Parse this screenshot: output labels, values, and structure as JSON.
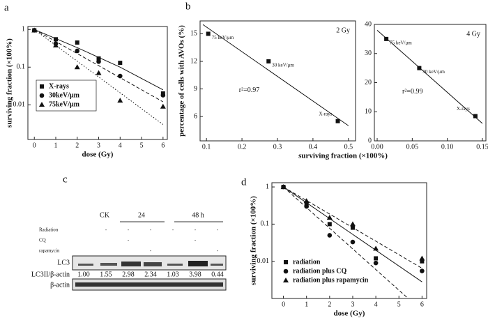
{
  "panels": [
    "a",
    "b",
    "c",
    "d"
  ],
  "chart_data": [
    {
      "type": "scatter",
      "log_y": true,
      "x_label": "dose  (Gy)",
      "y_label": "surviving fraction  (×100%)",
      "xlim": [
        -0.3,
        6.2
      ],
      "xticks": [
        0,
        1,
        2,
        3,
        4,
        5,
        6
      ],
      "ylim": [
        0.0012,
        1.2
      ],
      "yticks": [
        1,
        0.1,
        0.01
      ],
      "legend": "lower left",
      "legend_frame": true,
      "series": [
        {
          "name": "X-rays",
          "marker": "square",
          "color": "#111",
          "x": [
            0,
            1,
            2,
            3,
            4,
            6
          ],
          "values": [
            0.95,
            0.55,
            0.45,
            0.17,
            0.13,
            0.02
          ],
          "fit_x": [
            0,
            2,
            4,
            6
          ],
          "fit_values": [
            1,
            0.33,
            0.1,
            0.025
          ],
          "fit_style": "solid"
        },
        {
          "name": "30keV/μm",
          "marker": "circle",
          "color": "#111",
          "x": [
            0,
            1,
            2,
            3,
            4,
            6
          ],
          "values": [
            0.95,
            0.42,
            0.27,
            0.14,
            0.058,
            0.018
          ],
          "fit_x": [
            0,
            6
          ],
          "fit_values": [
            1,
            0.012
          ],
          "fit_style": "dashed"
        },
        {
          "name": "75keV/μm",
          "marker": "triangle",
          "color": "#111",
          "x": [
            0,
            1,
            2,
            3,
            4,
            6
          ],
          "values": [
            0.95,
            0.38,
            0.1,
            0.07,
            0.013,
            0.009
          ],
          "fit_x": [
            0,
            6
          ],
          "fit_values": [
            1,
            0.003
          ],
          "fit_style": "dotted"
        }
      ]
    },
    {
      "type": "scatter",
      "y_label": "percentage of cells with AVOs (%)",
      "x_label": "surviving fraction (×100%)",
      "xlim": [
        0.082,
        0.52
      ],
      "xticks": [
        0.1,
        0.2,
        0.3,
        0.4,
        0.5
      ],
      "ylim": [
        3.35,
        16.4
      ],
      "yticks": [
        6,
        9,
        12,
        15
      ],
      "dose": "2 Gy",
      "r2": "r²=0.97",
      "series": [
        {
          "marker": "square",
          "color": "#111",
          "x": [
            0.105,
            0.275,
            0.47
          ],
          "values": [
            15,
            12,
            5.5
          ],
          "point_labels": [
            "75 keV/μm",
            "30 keV/μm",
            "X-rays"
          ],
          "fit_x": [
            0.09,
            0.5
          ],
          "fit_values": [
            16,
            5
          ],
          "fit_style": "solid"
        }
      ]
    },
    {
      "type": "scatter",
      "xlim": [
        -0.004,
        0.155
      ],
      "xticks": [
        {
          "value": 0,
          "label": "0.00"
        },
        {
          "value": 0.05,
          "label": "0.05"
        },
        {
          "value": 0.1,
          "label": "0.10"
        },
        {
          "value": 0.15,
          "label": "0.15"
        }
      ],
      "ylim": [
        0,
        40
      ],
      "yticks": [
        0,
        10,
        20,
        30,
        40
      ],
      "dose": "4 Gy",
      "r2": "r²=0.99",
      "series": [
        {
          "marker": "square",
          "color": "#111",
          "x": [
            0.013,
            0.06,
            0.14
          ],
          "values": [
            35,
            25,
            8.5
          ],
          "point_labels": [
            "75 keV/μm",
            "30 keV/μm",
            "X-rays"
          ],
          "fit_x": [
            0,
            0.15
          ],
          "fit_values": [
            38,
            6
          ],
          "fit_style": "solid"
        }
      ]
    },
    {
      "type": "scatter",
      "log_y": true,
      "x_label": "dose (Gy)",
      "y_label": "surviving fraction (×100%)",
      "xlim": [
        -0.5,
        6.2
      ],
      "xticks": [
        0,
        1,
        2,
        3,
        4,
        5,
        6
      ],
      "ylim": [
        0.001,
        1.3
      ],
      "yticks": [
        1,
        0.1,
        0.01
      ],
      "legend": "lower left",
      "legend_frame": false,
      "series": [
        {
          "name": "radiation",
          "marker": "square",
          "color": "#111",
          "x": [
            0,
            1,
            2,
            3,
            4,
            6
          ],
          "values": [
            1,
            0.35,
            0.1,
            0.08,
            0.012,
            0.01
          ],
          "fit_x": [
            0,
            6
          ],
          "fit_values": [
            1,
            0.0028
          ],
          "fit_style": "solid"
        },
        {
          "name": "radiation plus CQ",
          "marker": "circle",
          "color": "#111",
          "x": [
            0,
            1,
            2,
            3,
            4,
            6
          ],
          "values": [
            1,
            0.3,
            0.05,
            0.033,
            0.009,
            0.0055
          ],
          "fit_x": [
            0,
            5.4
          ],
          "fit_values": [
            1,
            0.001
          ],
          "fit_style": "dashed"
        },
        {
          "name": "radiation plus rapamycin",
          "marker": "triangle",
          "color": "#111",
          "x": [
            0,
            1,
            2,
            3,
            4,
            6
          ],
          "values": [
            1,
            0.42,
            0.15,
            0.1,
            0.022,
            0.012
          ],
          "fit_x": [
            0,
            6
          ],
          "fit_values": [
            1,
            0.0065
          ],
          "fit_style": "dashed"
        }
      ]
    }
  ],
  "blot": {
    "groups": [
      "CK",
      "24",
      "48 h"
    ],
    "rows": [
      {
        "name": "Radiation",
        "signs": [
          null,
          "-",
          "-",
          "-",
          "-",
          "-",
          "-"
        ]
      },
      {
        "name": "CQ",
        "signs": [
          null,
          null,
          "-",
          null,
          null,
          "-",
          null
        ]
      },
      {
        "name": "rapamycin",
        "signs": [
          null,
          null,
          null,
          "-",
          null,
          null,
          "-"
        ]
      }
    ],
    "bands": [
      "LC3",
      "β-actin"
    ],
    "ratio_label": "LC3II/β-actin",
    "ratios": [
      "1.00",
      "1.55",
      "2.98",
      "2.34",
      "1.03",
      "3.98",
      "0.44"
    ]
  }
}
